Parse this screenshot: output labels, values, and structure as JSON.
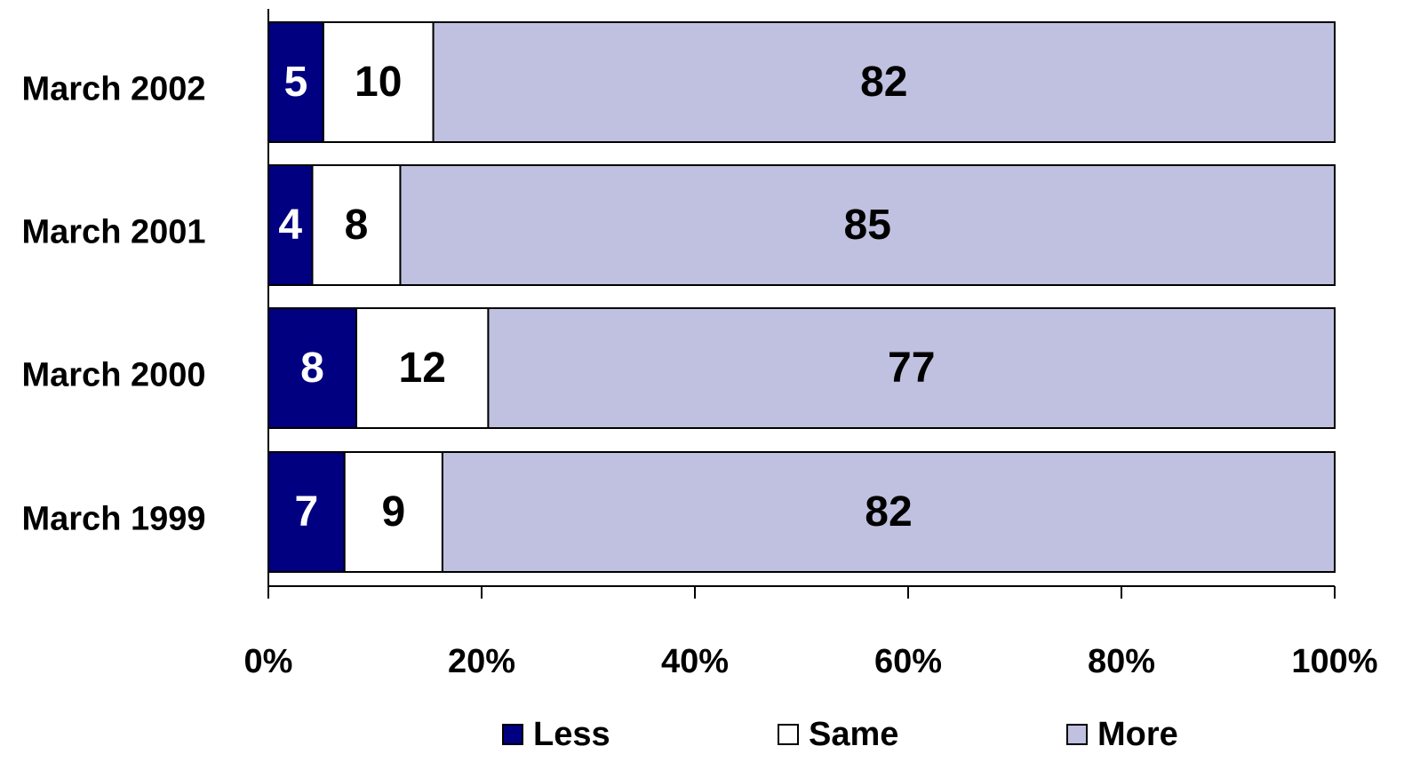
{
  "chart_data": {
    "type": "bar",
    "orientation": "horizontal",
    "stacked": "percent",
    "categories": [
      "March 2002",
      "March 2001",
      "March 2000",
      "March 1999"
    ],
    "series": [
      {
        "name": "Less",
        "values": [
          5,
          4,
          8,
          7
        ],
        "color": "#000080",
        "label_color": "#ffffff"
      },
      {
        "name": "Same",
        "values": [
          10,
          8,
          12,
          9
        ],
        "color": "#ffffff",
        "label_color": "#000000"
      },
      {
        "name": "More",
        "values": [
          82,
          85,
          77,
          82
        ],
        "color": "#c0c0e0",
        "label_color": "#000000"
      }
    ],
    "xaxis": {
      "ticks": [
        "0%",
        "20%",
        "40%",
        "60%",
        "80%",
        "100%"
      ],
      "range": [
        0,
        100
      ]
    },
    "grid": false,
    "legend_position": "bottom"
  }
}
